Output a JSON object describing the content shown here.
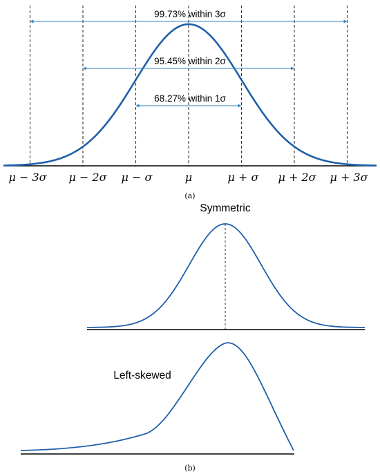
{
  "panel_a": {
    "caption": "(a)",
    "sigma_labels": [
      "μ − 3σ",
      "μ − 2σ",
      "μ − σ",
      "μ",
      "μ + σ",
      "μ + 2σ",
      "μ + 3σ"
    ],
    "ranges": [
      {
        "label": "99.73% within 3σ",
        "sigmas": 3
      },
      {
        "label": "95.45% within 2σ",
        "sigmas": 2
      },
      {
        "label": "68.27% within 1σ",
        "sigmas": 1
      }
    ]
  },
  "panel_b": {
    "caption": "(b)",
    "symmetric_label": "Symmetric",
    "left_skewed_label": "Left-skewed"
  },
  "colors": {
    "curve": "#1f5fa9",
    "arrow": "#2e86c1",
    "axis": "#000000",
    "dashed": "#333333"
  }
}
